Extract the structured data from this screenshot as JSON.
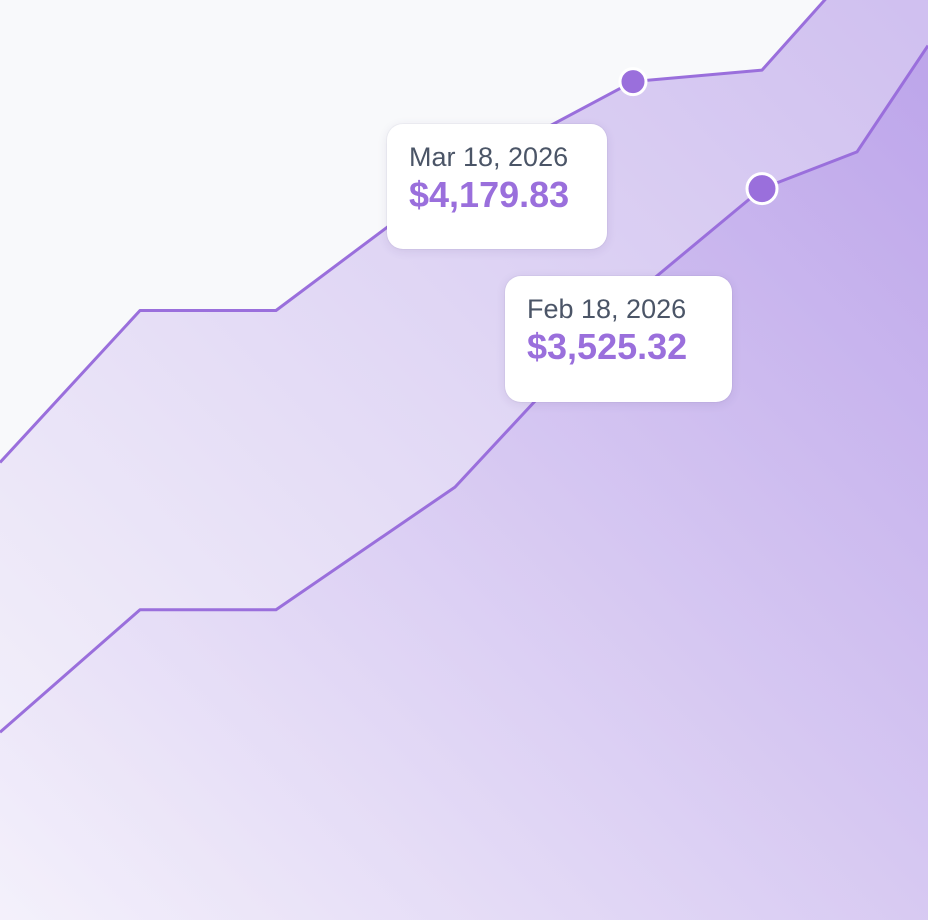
{
  "colors": {
    "background": "#f8f9fb",
    "line": "#9a6fdc",
    "marker_fill": "#9a6fdc",
    "marker_stroke": "#ffffff",
    "fill_light": "#f3effb",
    "fill_dark": "#ae90e6",
    "tooltip_date": "#4b5567",
    "tooltip_value": "#9a6fdc"
  },
  "chart_data": {
    "type": "area",
    "title": "",
    "xlabel": "",
    "ylabel": "",
    "grid": false,
    "legend": "none",
    "series": [
      {
        "values": [
          {
            "x": 0,
            "y": 1850
          },
          {
            "x": 1,
            "y": 2780
          },
          {
            "x": 2,
            "y": 2780
          },
          {
            "x": 3,
            "y": 3600
          },
          {
            "x": 4,
            "y": 4179.83
          },
          {
            "x": 5,
            "y": 4250
          },
          {
            "x": 6,
            "y": 4900
          },
          {
            "x": 7,
            "y": 5180
          }
        ],
        "highlight": {
          "x": 4,
          "date": "Mar 18, 2026",
          "value": "$4,179.83"
        }
      },
      {
        "values": [
          {
            "x": 0,
            "y": 200
          },
          {
            "x": 1,
            "y": 950
          },
          {
            "x": 2,
            "y": 950
          },
          {
            "x": 3,
            "y": 1700
          },
          {
            "x": 4,
            "y": 2870
          },
          {
            "x": 5,
            "y": 3525.32
          },
          {
            "x": 6,
            "y": 3750
          },
          {
            "x": 7,
            "y": 4400
          }
        ],
        "highlight": {
          "x": 5,
          "date": "Feb 18, 2026",
          "value": "$3,525.32"
        }
      }
    ]
  },
  "tooltips": [
    {
      "date": "Mar 18, 2026",
      "value": "$4,179.83"
    },
    {
      "date": "Feb 18, 2026",
      "value": "$3,525.32"
    }
  ]
}
